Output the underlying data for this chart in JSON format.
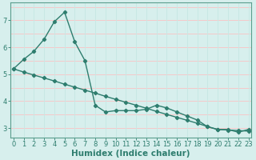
{
  "line1_x": [
    0,
    1,
    2,
    3,
    4,
    5,
    6,
    7,
    8,
    9,
    10,
    11,
    12,
    13,
    14,
    15,
    16,
    17,
    18,
    19,
    20,
    21,
    22,
    23
  ],
  "line1_y": [
    5.2,
    5.55,
    5.85,
    6.3,
    6.95,
    7.3,
    6.2,
    5.5,
    3.85,
    3.6,
    3.65,
    3.65,
    3.65,
    3.7,
    3.85,
    3.75,
    3.6,
    3.45,
    3.3,
    3.05,
    2.95,
    2.95,
    2.85,
    2.95
  ],
  "line2_x": [
    0,
    1,
    2,
    3,
    4,
    5,
    6,
    7,
    8,
    9,
    10,
    11,
    12,
    13,
    14,
    15,
    16,
    17,
    18,
    19,
    20,
    21,
    22,
    23
  ],
  "line2_y": [
    5.2,
    5.08,
    4.97,
    4.86,
    4.75,
    4.63,
    4.52,
    4.41,
    4.3,
    4.18,
    4.07,
    3.96,
    3.85,
    3.74,
    3.62,
    3.51,
    3.4,
    3.29,
    3.18,
    3.06,
    2.95,
    2.93,
    2.91,
    2.89
  ],
  "line_color": "#2e7d6e",
  "marker": "D",
  "marker_size": 2.2,
  "line_width": 1.0,
  "xlabel": "Humidex (Indice chaleur)",
  "xlabel_fontsize": 7.5,
  "yticks": [
    3,
    4,
    5,
    6,
    7
  ],
  "xticks": [
    0,
    1,
    2,
    3,
    4,
    5,
    6,
    7,
    8,
    9,
    10,
    11,
    12,
    13,
    14,
    15,
    16,
    17,
    18,
    19,
    20,
    21,
    22,
    23
  ],
  "xlim": [
    -0.3,
    23.3
  ],
  "ylim": [
    2.65,
    7.65
  ],
  "bg_color": "#d7efed",
  "grid_color_h": "#f5c8c8",
  "grid_color_v": "#c8e8e4",
  "tick_fontsize": 6.0,
  "axis_color": "#2e7d6e",
  "spine_color": "#5a9e8e"
}
